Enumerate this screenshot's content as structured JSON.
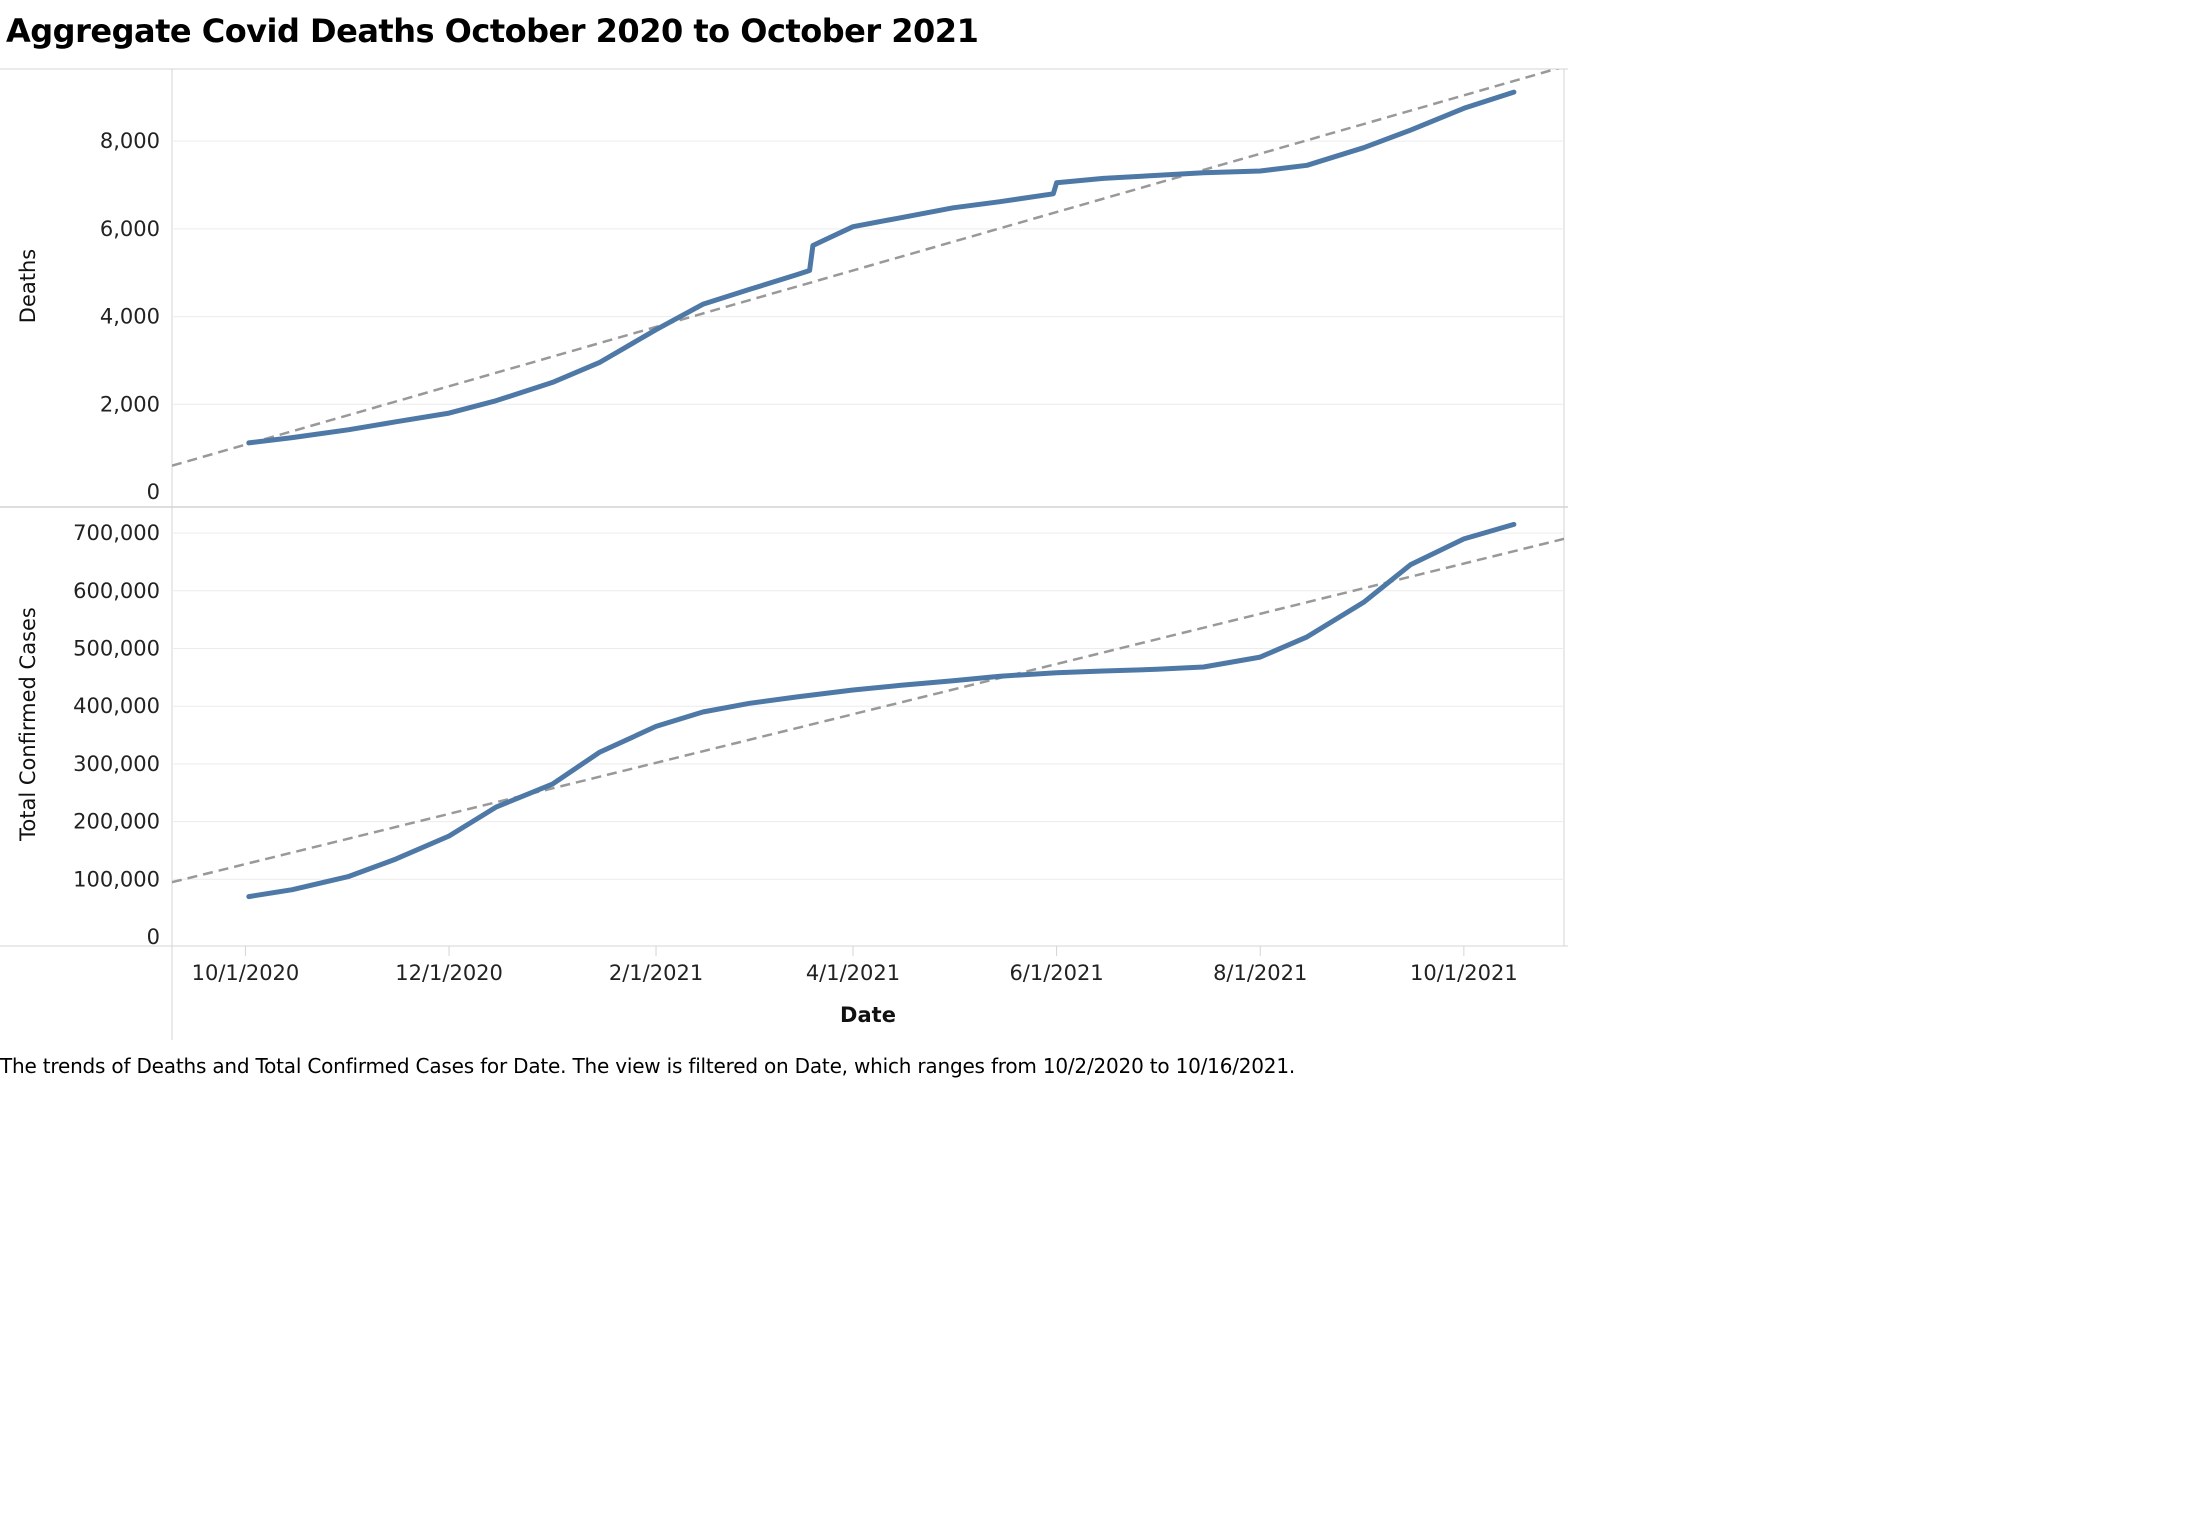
{
  "title": "Aggregate Covid Deaths October 2020 to October 2021",
  "caption": "The trends of Deaths and Total Confirmed Cases for Date. The view is filtered on Date, which ranges from 10/2/2020 to 10/16/2021.",
  "colors": {
    "line": "#4e79a7",
    "trend": "#999999",
    "grid": "#ececec",
    "border": "#d4d4d4"
  },
  "chart_data": [
    {
      "type": "line",
      "ylabel": "Deaths",
      "xlabel": "Date",
      "ylim": [
        0,
        9600
      ],
      "yticks": [
        {
          "value": 0,
          "label": "0"
        },
        {
          "value": 2000,
          "label": "2,000"
        },
        {
          "value": 4000,
          "label": "4,000"
        },
        {
          "value": 6000,
          "label": "6,000"
        },
        {
          "value": 8000,
          "label": "8,000"
        }
      ],
      "grid": true,
      "trend_line": {
        "style": "dashed",
        "points": [
          [
            "2020-09-09",
            600
          ],
          [
            "2021-10-31",
            9700
          ]
        ]
      },
      "series": [
        {
          "values": [
            [
              "2020-10-02",
              1120
            ],
            [
              "2020-10-15",
              1240
            ],
            [
              "2020-11-01",
              1420
            ],
            [
              "2020-11-15",
              1600
            ],
            [
              "2020-12-01",
              1800
            ],
            [
              "2020-12-15",
              2080
            ],
            [
              "2021-01-01",
              2500
            ],
            [
              "2021-01-15",
              2950
            ],
            [
              "2021-02-01",
              3700
            ],
            [
              "2021-02-15",
              4280
            ],
            [
              "2021-03-01",
              4620
            ],
            [
              "2021-03-15",
              4950
            ],
            [
              "2021-03-19",
              5050
            ],
            [
              "2021-03-20",
              5620
            ],
            [
              "2021-03-25",
              5800
            ],
            [
              "2021-04-01",
              6050
            ],
            [
              "2021-04-15",
              6250
            ],
            [
              "2021-05-01",
              6480
            ],
            [
              "2021-05-15",
              6620
            ],
            [
              "2021-05-31",
              6800
            ],
            [
              "2021-06-01",
              7050
            ],
            [
              "2021-06-15",
              7150
            ],
            [
              "2021-07-01",
              7220
            ],
            [
              "2021-07-15",
              7280
            ],
            [
              "2021-08-01",
              7320
            ],
            [
              "2021-08-15",
              7450
            ],
            [
              "2021-09-01",
              7850
            ],
            [
              "2021-09-15",
              8250
            ],
            [
              "2021-10-01",
              8750
            ],
            [
              "2021-10-16",
              9120
            ]
          ]
        }
      ]
    },
    {
      "type": "line",
      "ylabel": "Total Confirmed Cases",
      "xlabel": "Date",
      "ylim": [
        0,
        740000
      ],
      "yticks": [
        {
          "value": 0,
          "label": "0"
        },
        {
          "value": 100000,
          "label": "100,000"
        },
        {
          "value": 200000,
          "label": "200,000"
        },
        {
          "value": 300000,
          "label": "300,000"
        },
        {
          "value": 400000,
          "label": "400,000"
        },
        {
          "value": 500000,
          "label": "500,000"
        },
        {
          "value": 600000,
          "label": "600,000"
        },
        {
          "value": 700000,
          "label": "700,000"
        }
      ],
      "grid": true,
      "trend_line": {
        "style": "dashed",
        "points": [
          [
            "2020-09-09",
            95000
          ],
          [
            "2021-10-31",
            690000
          ]
        ]
      },
      "series": [
        {
          "values": [
            [
              "2020-10-02",
              70000
            ],
            [
              "2020-10-15",
              82000
            ],
            [
              "2020-11-01",
              105000
            ],
            [
              "2020-11-15",
              135000
            ],
            [
              "2020-12-01",
              175000
            ],
            [
              "2020-12-15",
              225000
            ],
            [
              "2021-01-01",
              265000
            ],
            [
              "2021-01-15",
              320000
            ],
            [
              "2021-02-01",
              365000
            ],
            [
              "2021-02-15",
              390000
            ],
            [
              "2021-03-01",
              405000
            ],
            [
              "2021-03-15",
              416000
            ],
            [
              "2021-04-01",
              428000
            ],
            [
              "2021-04-15",
              436000
            ],
            [
              "2021-05-01",
              444000
            ],
            [
              "2021-05-15",
              452000
            ],
            [
              "2021-06-01",
              458000
            ],
            [
              "2021-06-15",
              461000
            ],
            [
              "2021-07-01",
              464000
            ],
            [
              "2021-07-15",
              468000
            ],
            [
              "2021-08-01",
              485000
            ],
            [
              "2021-08-15",
              520000
            ],
            [
              "2021-09-01",
              580000
            ],
            [
              "2021-09-15",
              645000
            ],
            [
              "2021-10-01",
              690000
            ],
            [
              "2021-10-16",
              715000
            ]
          ]
        }
      ]
    }
  ],
  "x_axis": {
    "title": "Date",
    "domain": [
      "2020-09-09",
      "2021-10-31"
    ],
    "ticks": [
      {
        "date": "2020-10-01",
        "label": "10/1/2020"
      },
      {
        "date": "2020-12-01",
        "label": "12/1/2020"
      },
      {
        "date": "2021-02-01",
        "label": "2/1/2021"
      },
      {
        "date": "2021-04-01",
        "label": "4/1/2021"
      },
      {
        "date": "2021-06-01",
        "label": "6/1/2021"
      },
      {
        "date": "2021-08-01",
        "label": "8/1/2021"
      },
      {
        "date": "2021-10-01",
        "label": "10/1/2021"
      }
    ]
  }
}
